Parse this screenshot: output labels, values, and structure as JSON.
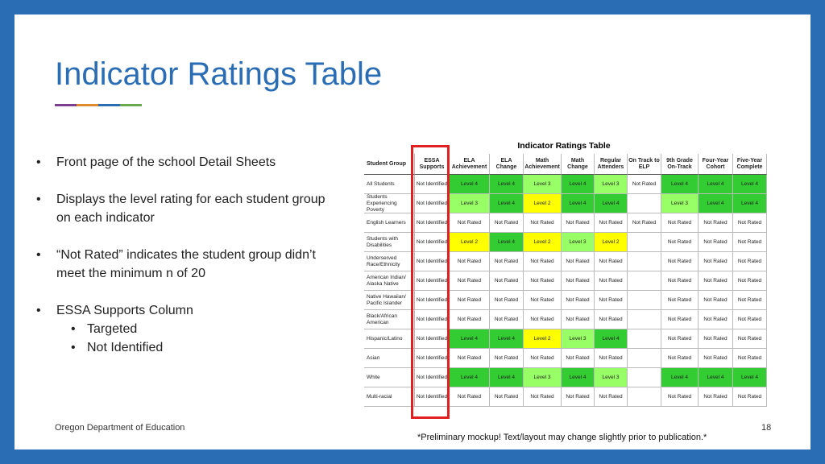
{
  "slide": {
    "title": "Indicator Ratings Table",
    "bullets": [
      {
        "text": "Front page of the school Detail Sheets"
      },
      {
        "text": "Displays the level rating for each student group on each indicator"
      },
      {
        "text": "“Not Rated” indicates the student group didn’t meet the minimum n of 20"
      },
      {
        "text": "ESSA Supports Column",
        "sub": [
          "Targeted",
          "Not Identified"
        ]
      }
    ],
    "footer": "Oregon Department of Education",
    "page_number": "18",
    "note": "*Preliminary mockup! Text/layout may change slightly prior to publication.*"
  },
  "table": {
    "title": "Indicator Ratings Table",
    "headers": [
      "Student Group",
      "ESSA Supports",
      "ELA Achievement",
      "ELA Change",
      "Math Achievement",
      "Math Change",
      "Regular Attenders",
      "On Track to ELP",
      "9th Grade On-Track",
      "Four-Year Cohort",
      "Five-Year Complete"
    ],
    "level_fills": {
      "Level 4": "#33cc33",
      "Level 3": "#99ff66",
      "Level 2": "#ffff00"
    },
    "highlight_color": "#e02020",
    "rows": [
      [
        "All Students",
        "Not Identified",
        "Level 4",
        "Level 4",
        "Level 3",
        "Level 4",
        "Level 3",
        "Not Rated",
        "Level 4",
        "Level 4",
        "Level 4"
      ],
      [
        "Students Experiencing Poverty",
        "Not Identified",
        "Level 3",
        "Level 4",
        "Level 2",
        "Level 4",
        "Level 4",
        null,
        "Level 3",
        "Level 4",
        "Level 4"
      ],
      [
        "English Learners",
        "Not Identified",
        "Not Rated",
        "Not Rated",
        "Not Rated",
        "Not Rated",
        "Not Rated",
        "Not Rated",
        "Not Rated",
        "Not Rated",
        "Not Rated"
      ],
      [
        "Students with Disabilities",
        "Not Identified",
        "Level 2",
        "Level 4",
        "Level 2",
        "Level 3",
        "Level 2",
        null,
        "Not Rated",
        "Not Rated",
        "Not Rated"
      ],
      [
        "Underserved Race/Ethnicity",
        "Not Identified",
        "Not Rated",
        "Not Rated",
        "Not Rated",
        "Not Rated",
        "Not Rated",
        null,
        "Not Rated",
        "Not Rated",
        "Not Rated"
      ],
      [
        "American Indian/ Alaska Native",
        "Not Identified",
        "Not Rated",
        "Not Rated",
        "Not Rated",
        "Not Rated",
        "Not Rated",
        null,
        "Not Rated",
        "Not Rated",
        "Not Rated"
      ],
      [
        "Native Hawaiian/ Pacific Islander",
        "Not Identified",
        "Not Rated",
        "Not Rated",
        "Not Rated",
        "Not Rated",
        "Not Rated",
        null,
        "Not Rated",
        "Not Rated",
        "Not Rated"
      ],
      [
        "Black/African American",
        "Not Identified",
        "Not Rated",
        "Not Rated",
        "Not Rated",
        "Not Rated",
        "Not Rated",
        null,
        "Not Rated",
        "Not Rated",
        "Not Rated"
      ],
      [
        "Hispanic/Latino",
        "Not Identified",
        "Level 4",
        "Level 4",
        "Level 2",
        "Level 3",
        "Level 4",
        null,
        "Not Rated",
        "Not Rated",
        "Not Rated"
      ],
      [
        "Asian",
        "Not Identified",
        "Not Rated",
        "Not Rated",
        "Not Rated",
        "Not Rated",
        "Not Rated",
        null,
        "Not Rated",
        "Not Rated",
        "Not Rated"
      ],
      [
        "White",
        "Not Identified",
        "Level 4",
        "Level 4",
        "Level 3",
        "Level 4",
        "Level 3",
        null,
        "Level 4",
        "Level 4",
        "Level 4"
      ],
      [
        "Multi-racial",
        "Not Identified",
        "Not Rated",
        "Not Rated",
        "Not Rated",
        "Not Rated",
        "Not Rated",
        null,
        "Not Rated",
        "Not Rated",
        "Not Rated"
      ]
    ]
  }
}
